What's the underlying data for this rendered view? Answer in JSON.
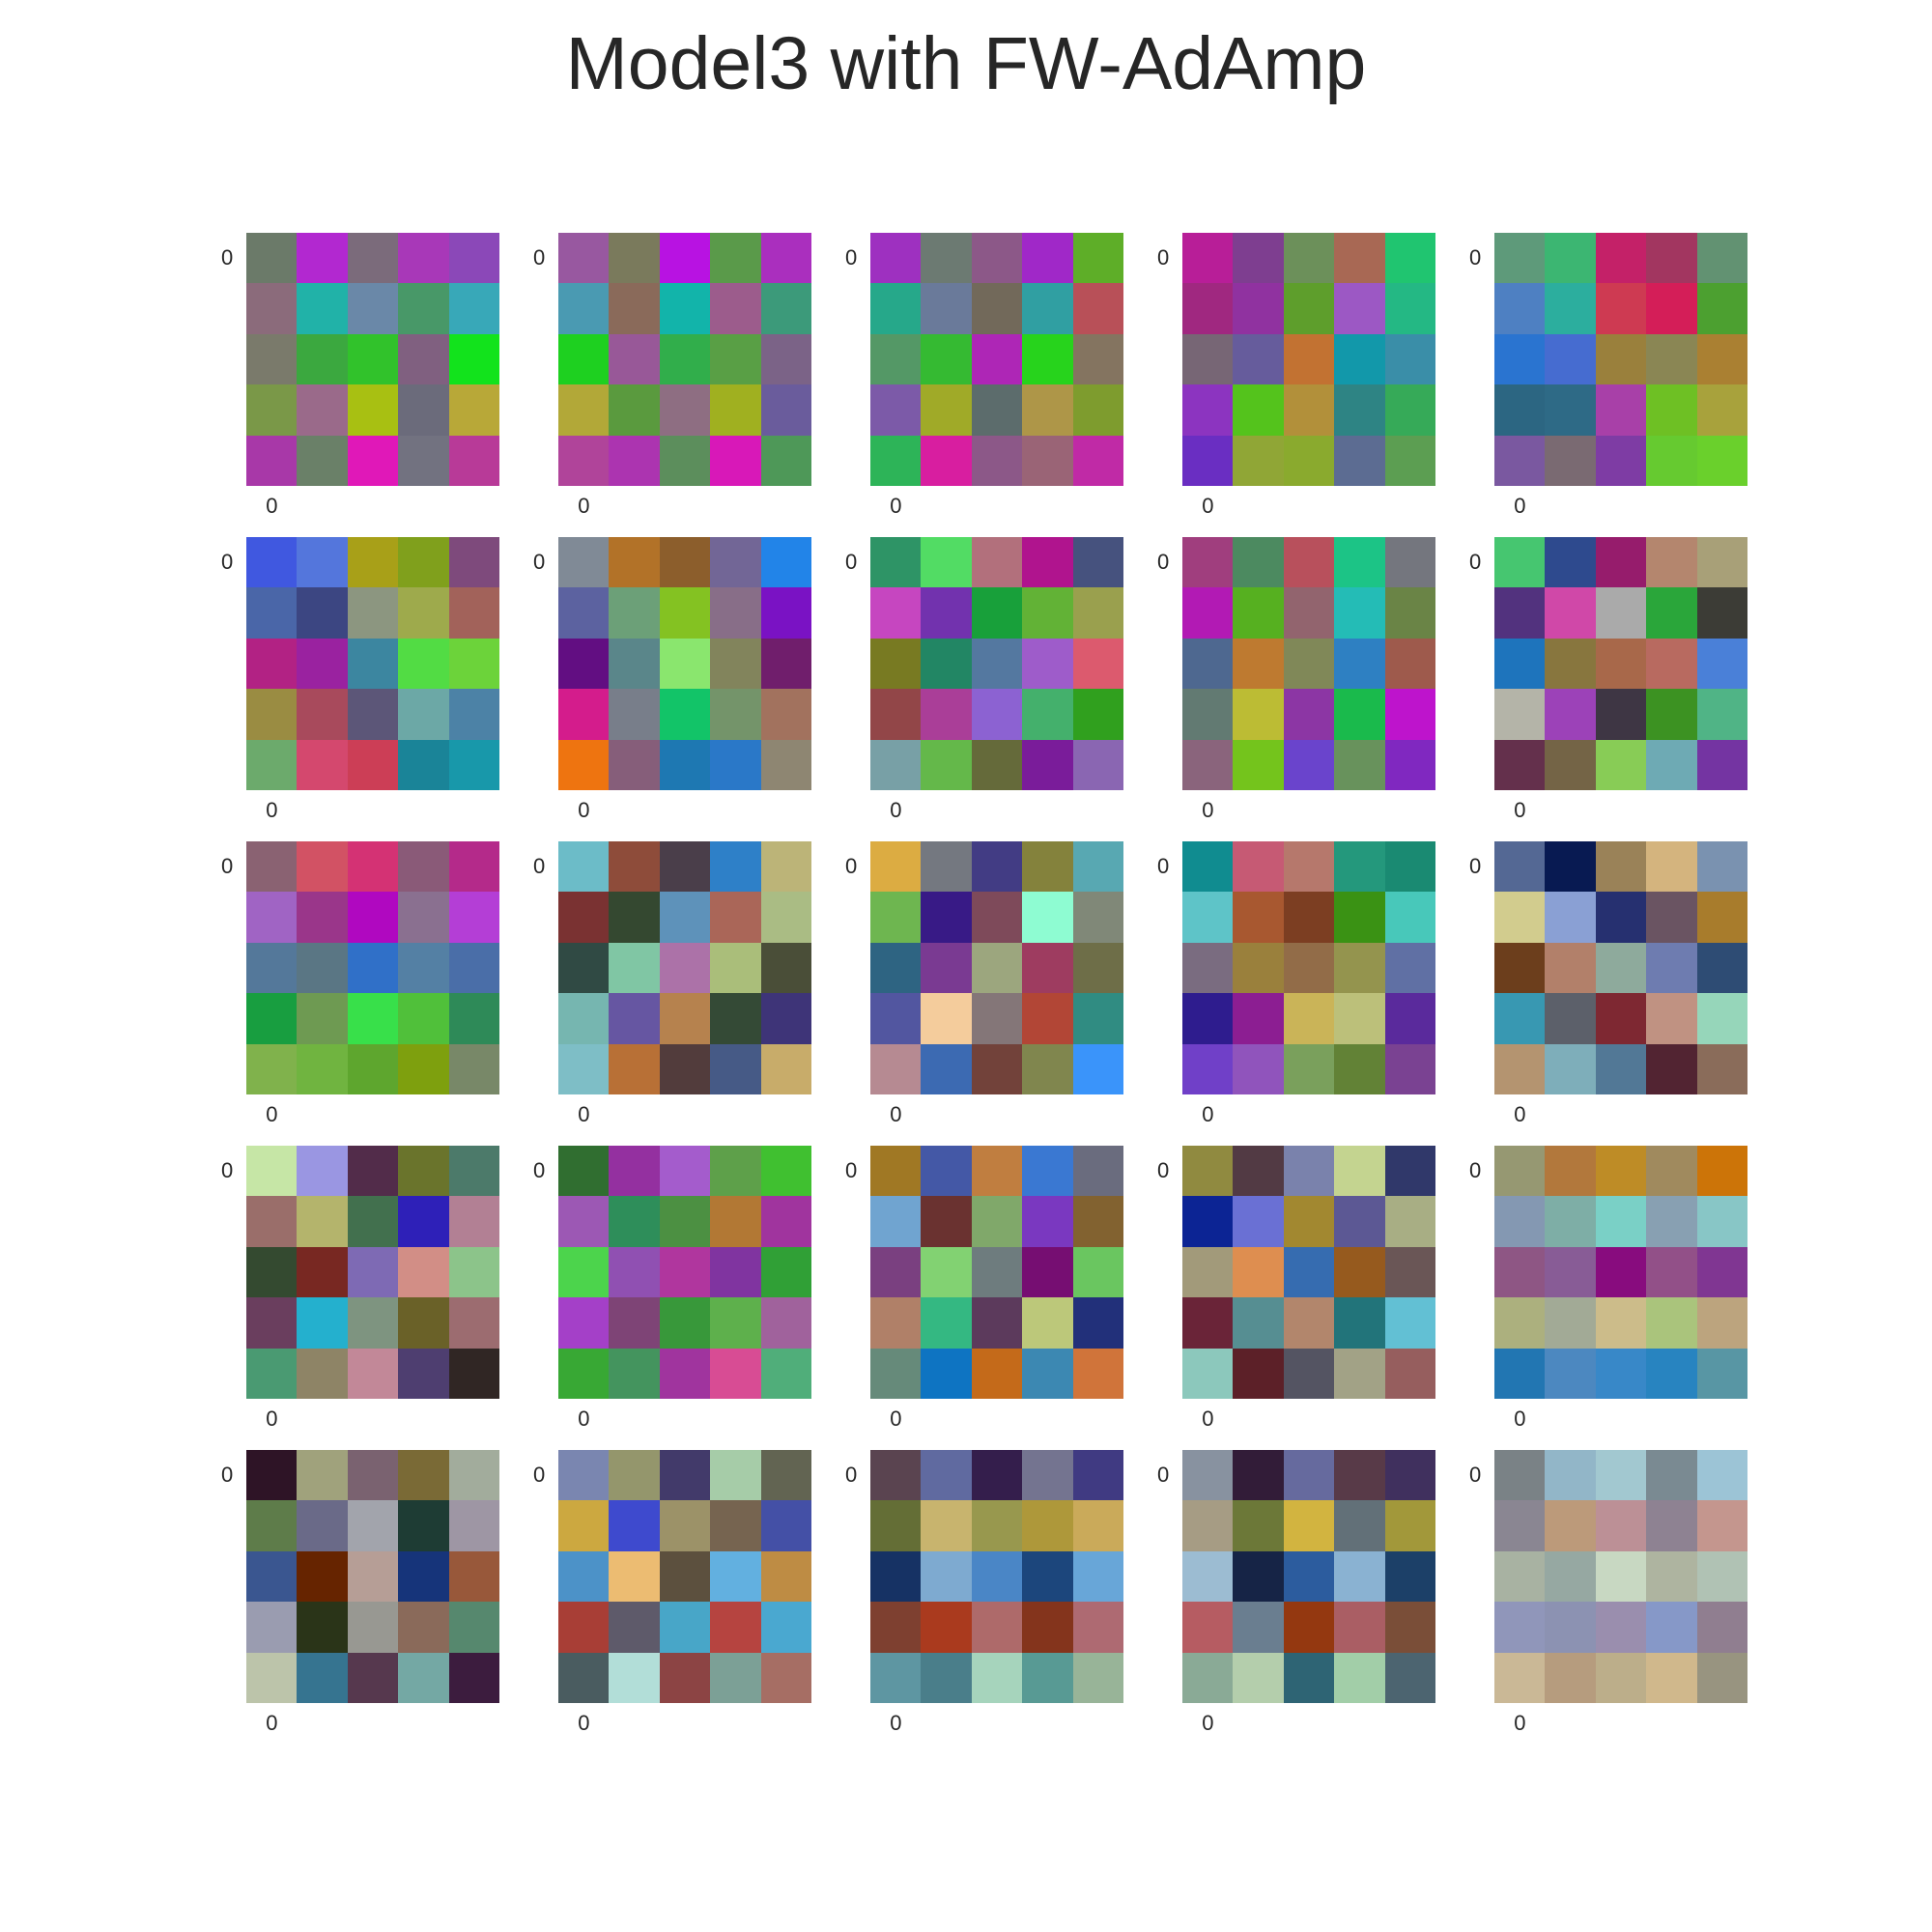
{
  "figure": {
    "title": "Model3 with FW-AdAmp"
  },
  "chart_data": {
    "type": "heatmap",
    "title": "Model3 with FW-AdAmp",
    "grid": false,
    "layout_rows": 5,
    "layout_cols": 5,
    "panel_size": 5,
    "x_tick_label": "0",
    "y_tick_label": "0",
    "panels": [
      [
        "#6b7a69",
        "#b228d0",
        "#7b6b7b",
        "#a838b8",
        "#8b48b8",
        "#8b6b7b",
        "#21b2a8",
        "#6a88a8",
        "#489868",
        "#38a8b8",
        "#7a7a6b",
        "#3ba83f",
        "#31c22b",
        "#806080",
        "#12e31c",
        "#7a9848",
        "#9a6a8a",
        "#a8c012",
        "#6b6b7b",
        "#b8a838",
        "#a838a8",
        "#6a8068",
        "#e018b8",
        "#727280",
        "#b83a98"
      ],
      [
        "#9858a0",
        "#7a7a5c",
        "#b812e2",
        "#5a9a4a",
        "#aa2fbe",
        "#4a9ab2",
        "#8a6a5a",
        "#12b4aa",
        "#9c5c8c",
        "#3c9a7a",
        "#1ed020",
        "#985898",
        "#31ae4b",
        "#599f45",
        "#7b6387",
        "#b2a838",
        "#5a9a3e",
        "#8e6e82",
        "#a0b020",
        "#6a5c9c",
        "#b0449a",
        "#ac34b0",
        "#5c8e5c",
        "#d818b8",
        "#4e9858"
      ],
      [
        "#9e30c0",
        "#6c7a72",
        "#8c5888",
        "#a028c8",
        "#5eae28",
        "#26a88a",
        "#6a7a9a",
        "#72695a",
        "#309fa2",
        "#b85058",
        "#549866",
        "#35ba32",
        "#ae26b6",
        "#27d31c",
        "#847460",
        "#7c5aa8",
        "#a0aa28",
        "#5c6c6c",
        "#ae9648",
        "#7e9c2e",
        "#2db458",
        "#d81ea0",
        "#8c5888",
        "#9a6476",
        "#c02aa6"
      ],
      [
        "#b81e98",
        "#7e3e90",
        "#6c905a",
        "#a86854",
        "#20c570",
        "#a02880",
        "#9032a0",
        "#5e9e2c",
        "#9c58c4",
        "#24b884",
        "#776675",
        "#665c9c",
        "#c27232",
        "#1298aa",
        "#3a8ea8",
        "#8c34c0",
        "#54c31c",
        "#b2903a",
        "#2e8484",
        "#36aa58",
        "#6a2ec2",
        "#90a636",
        "#8aaa2e",
        "#5c6c92",
        "#5c9e52"
      ],
      [
        "#5e9a7a",
        "#3cb672",
        "#c42168",
        "#a23660",
        "#629272",
        "#4e80c2",
        "#2cae9e",
        "#ce3a52",
        "#d41e58",
        "#4ca030",
        "#2a74d0",
        "#466cd0",
        "#9a803c",
        "#8a8654",
        "#aa8032",
        "#2c6682",
        "#2e6a86",
        "#a840a8",
        "#6ec024",
        "#a8a23c",
        "#7a58a0",
        "#7a6a72",
        "#7e3ca4",
        "#66ca30",
        "#6ad02c"
      ],
      [
        "#4058e0",
        "#5476dc",
        "#a8a018",
        "#80a01c",
        "#7e4a7c",
        "#4a66a8",
        "#3c4682",
        "#8c9680",
        "#9eaa4c",
        "#a2625a",
        "#b22284",
        "#9a22a0",
        "#3c86a0",
        "#52dc44",
        "#6cd33a",
        "#9a8c42",
        "#a84a5c",
        "#5c5678",
        "#6ca8a6",
        "#4c82a6",
        "#6caa6c",
        "#d4486e",
        "#cc3e56",
        "#1a8498",
        "#1898aa"
      ],
      [
        "#808a96",
        "#b27228",
        "#8c5e2c",
        "#726696",
        "#2284e8",
        "#5c62a0",
        "#6ca078",
        "#84c222",
        "#886e88",
        "#7a12c4",
        "#620e82",
        "#5a868a",
        "#8ae66e",
        "#82845c",
        "#701e6c",
        "#d41c8c",
        "#787e8a",
        "#12c468",
        "#74946a",
        "#a2725e",
        "#ee7410",
        "#865e7a",
        "#1e78b2",
        "#2a78c8",
        "#8e8672"
      ],
      [
        "#2e9466",
        "#52dc64",
        "#b2707c",
        "#b0148e",
        "#46527e",
        "#c646c0",
        "#7232ae",
        "#18a03a",
        "#62b236",
        "#9aa04e",
        "#787a22",
        "#228664",
        "#5478a0",
        "#9e5cca",
        "#dc5a6e",
        "#924648",
        "#aa3e98",
        "#8c62d2",
        "#44b06c",
        "#30a01e",
        "#78a0a6",
        "#64b84a",
        "#656a3a",
        "#7a1c9a",
        "#8a66b2"
      ],
      [
        "#a03e7e",
        "#4c8a60",
        "#b8505c",
        "#1cc486",
        "#74767e",
        "#b21ab4",
        "#56b020",
        "#92646e",
        "#24bcb6",
        "#6a8446",
        "#4e6890",
        "#be7a30",
        "#808858",
        "#2e80c2",
        "#9e5a4c",
        "#627a72",
        "#bcbc34",
        "#8c36a4",
        "#1aba4c",
        "#be14cc",
        "#8a647c",
        "#74c41c",
        "#6a44cc",
        "#68925c",
        "#8028c0"
      ],
      [
        "#46c670",
        "#2e4a8e",
        "#961c6c",
        "#b4866e",
        "#a8a078",
        "#52327e",
        "#d048a8",
        "#aaaaaa",
        "#2aa63a",
        "#3c3c36",
        "#1e74bc",
        "#88763e",
        "#a8684a",
        "#b86a60",
        "#4a80d8",
        "#b4b4a8",
        "#9c42b8",
        "#3e3644",
        "#3c9222",
        "#50b486",
        "#64304c",
        "#746446",
        "#88cc56",
        "#6eaab4",
        "#7434a2"
      ],
      [
        "#8a6272",
        "#d25264",
        "#d43274",
        "#8a5a78",
        "#b42a8a",
        "#a064c4",
        "#9a368a",
        "#b008c0",
        "#8a7090",
        "#b43ed6",
        "#54789a",
        "#5a7684",
        "#3070c8",
        "#5480a4",
        "#4a6ea8",
        "#189e40",
        "#6e9a52",
        "#38e04a",
        "#50c03a",
        "#2e8a58",
        "#80b24c",
        "#70b440",
        "#5ea62e",
        "#7ea00e",
        "#788868"
      ],
      [
        "#6cbcc8",
        "#8e4c3a",
        "#4a3e4a",
        "#2e80c8",
        "#bcb478",
        "#7a3232",
        "#344830",
        "#5e92ba",
        "#aa6658",
        "#aabc84",
        "#304a44",
        "#80c6a4",
        "#ac72a8",
        "#aabe7a",
        "#4a4e38",
        "#76b6b0",
        "#6656a2",
        "#b6824e",
        "#344a36",
        "#3e3478",
        "#7ebec6",
        "#b87036",
        "#523c3c",
        "#465a86",
        "#c8ac6a"
      ],
      [
        "#dcac42",
        "#747880",
        "#423c84",
        "#84823c",
        "#58a8b2",
        "#6eb650",
        "#381a86",
        "#7e4a5a",
        "#8efcd2",
        "#808878",
        "#2e6482",
        "#7a3a92",
        "#9ca67e",
        "#9e3c60",
        "#6e6e48",
        "#5256a0",
        "#f4cc9c",
        "#847678",
        "#b24636",
        "#308c82",
        "#b68a92",
        "#3c6ab2",
        "#72423a",
        "#80864e",
        "#3a94fa"
      ],
      [
        "#108c90",
        "#c65a74",
        "#b6786c",
        "#24987c",
        "#1a8a72",
        "#5ec4c8",
        "#a85830",
        "#7c3e22",
        "#3a9214",
        "#48c8ba",
        "#7a6c80",
        "#9a803c",
        "#926c48",
        "#94944e",
        "#6070a4",
        "#2e1c8e",
        "#8c1e92",
        "#cab458",
        "#bcc07a",
        "#5a2a9c",
        "#7040c8",
        "#9054bc",
        "#7aa05c",
        "#628236",
        "#7a4292"
      ],
      [
        "#546894",
        "#081a52",
        "#9a8258",
        "#d4b47e",
        "#7a92b0",
        "#d2cc8e",
        "#8aa0d4",
        "#263070",
        "#6a5462",
        "#a87c2c",
        "#6c3e1c",
        "#b2806a",
        "#8eaa9c",
        "#6e7cb0",
        "#2e4c74",
        "#3898b2",
        "#5c606a",
        "#7e2832",
        "#c09282",
        "#96d6ba",
        "#b49470",
        "#7eaeba",
        "#527896",
        "#522432",
        "#8a6c5a"
      ],
      [
        "#c6e6a6",
        "#9a96e2",
        "#522c4a",
        "#6a742c",
        "#4c7a6a",
        "#9a6e6a",
        "#b4b46c",
        "#42704e",
        "#2e20b8",
        "#b28094",
        "#344a30",
        "#782822",
        "#7e6ab4",
        "#d28e86",
        "#8cc48a",
        "#6a3e5e",
        "#24b0ce",
        "#7e9480",
        "#6a6128",
        "#9c6c70",
        "#4a9a72",
        "#8e8466",
        "#c28898",
        "#4e3e70",
        "#302624"
      ],
      [
        "#306e30",
        "#9430a0",
        "#a45ccc",
        "#5ea04a",
        "#40c030",
        "#9c58b4",
        "#2e8e5a",
        "#4c9042",
        "#b27834",
        "#a0349e",
        "#4cd44c",
        "#9050b2",
        "#b0369e",
        "#8034a0",
        "#30a036",
        "#a440c8",
        "#7e4476",
        "#38983a",
        "#5eb04c",
        "#a0629c",
        "#38a834",
        "#44945e",
        "#a0349e",
        "#d84c94",
        "#50ae7a"
      ],
      [
        "#a07824",
        "#4458a6",
        "#c07e40",
        "#3a78d2",
        "#6a6c7e",
        "#70a4d0",
        "#6a3230",
        "#80a86a",
        "#7a38c0",
        "#826230",
        "#7a4080",
        "#82d272",
        "#6e7c7e",
        "#760e72",
        "#6ac660",
        "#b08068",
        "#34b882",
        "#5c3a5c",
        "#bcc87a",
        "#22307a",
        "#668a7a",
        "#0e74c2",
        "#c46a1a",
        "#3c88b2",
        "#d0743a"
      ],
      [
        "#908a40",
        "#523a44",
        "#7a82ac",
        "#c4d490",
        "#30386a",
        "#0c2494",
        "#6a70d4",
        "#a28830",
        "#5c5894",
        "#a8ae84",
        "#a29a7a",
        "#de8e50",
        "#366cb0",
        "#965a1e",
        "#6a5656",
        "#6a2438",
        "#568e92",
        "#b2866c",
        "#22747a",
        "#62c0d4",
        "#8cc8bc",
        "#5c2028",
        "#545462",
        "#a2a286",
        "#965e5e"
      ],
      [
        "#969872",
        "#b2783c",
        "#be8c26",
        "#a08a5e",
        "#cc7408",
        "#8498b2",
        "#7eaea6",
        "#7ad0c6",
        "#88a0b2",
        "#88c6c6",
        "#8e5684",
        "#885c96",
        "#880c7e",
        "#925088",
        "#803692",
        "#acb07e",
        "#a2aa96",
        "#ccbc8a",
        "#aac47c",
        "#bca47e",
        "#2276b2",
        "#4c88c0",
        "#3888c8",
        "#2884c0",
        "#5896a4"
      ],
      [
        "#2e1426",
        "#a0a27c",
        "#7a6270",
        "#7a6a36",
        "#a2ac9c",
        "#5e7c4a",
        "#6a6a88",
        "#a2a4ac",
        "#1e3c34",
        "#9e96a4",
        "#3a5690",
        "#662400",
        "#b69e96",
        "#16347a",
        "#98583a",
        "#9a9cb0",
        "#2a3418",
        "#989892",
        "#8a6a5a",
        "#56886e",
        "#bcc4aa",
        "#367490",
        "#56384e",
        "#74a8a4",
        "#3c1c3e"
      ],
      [
        "#7a86b0",
        "#94966c",
        "#423a6a",
        "#a6cca8",
        "#626452",
        "#cca840",
        "#3e4ace",
        "#9c9268",
        "#766450",
        "#4450a6",
        "#4c92c8",
        "#ecbc72",
        "#5c503e",
        "#62b0e0",
        "#be8c44",
        "#a83e36",
        "#5e5a6a",
        "#48a6c8",
        "#b64440",
        "#4aa8d0",
        "#4a5c60",
        "#b2ded8",
        "#8c4444",
        "#7ca096",
        "#a66e64"
      ],
      [
        "#5a4450",
        "#606aa0",
        "#341e4c",
        "#747490",
        "#403a82",
        "#646e36",
        "#c8b46e",
        "#98984e",
        "#ae983a",
        "#caaa5a",
        "#163264",
        "#7eaad0",
        "#4a86c6",
        "#1c467c",
        "#68a6d8",
        "#7e4030",
        "#aa3a1e",
        "#ae6a6a",
        "#84341c",
        "#ae6a72",
        "#5e96a2",
        "#4a7e8a",
        "#a6d4bc",
        "#589a94",
        "#98b498"
      ],
      [
        "#8892a0",
        "#321c38",
        "#666a9e",
        "#583a48",
        "#40305e",
        "#a69c84",
        "#6c7838",
        "#d2b440",
        "#627078",
        "#a2983a",
        "#9cbcd2",
        "#162446",
        "#2c5c9e",
        "#8ab2d2",
        "#1c4068",
        "#b65c62",
        "#6a7e90",
        "#943810",
        "#aa5e64",
        "#7a4e38",
        "#8aaa96",
        "#b4ceac",
        "#2e6474",
        "#a2cea8",
        "#4c6470"
      ],
      [
        "#7a8286",
        "#92b6c8",
        "#a2c8d0",
        "#7a8a92",
        "#9cc4d6",
        "#8a8692",
        "#bc9a7a",
        "#bc9096",
        "#8e8292",
        "#c4968e",
        "#a8b2a2",
        "#96a8a2",
        "#c8d8c2",
        "#aeb4a0",
        "#b0c2b4",
        "#9096ba",
        "#8c92b2",
        "#9a8eae",
        "#8698c8",
        "#907e90",
        "#cab896",
        "#b69c7e",
        "#bcae8a",
        "#d0b88c",
        "#989480"
      ]
    ]
  }
}
